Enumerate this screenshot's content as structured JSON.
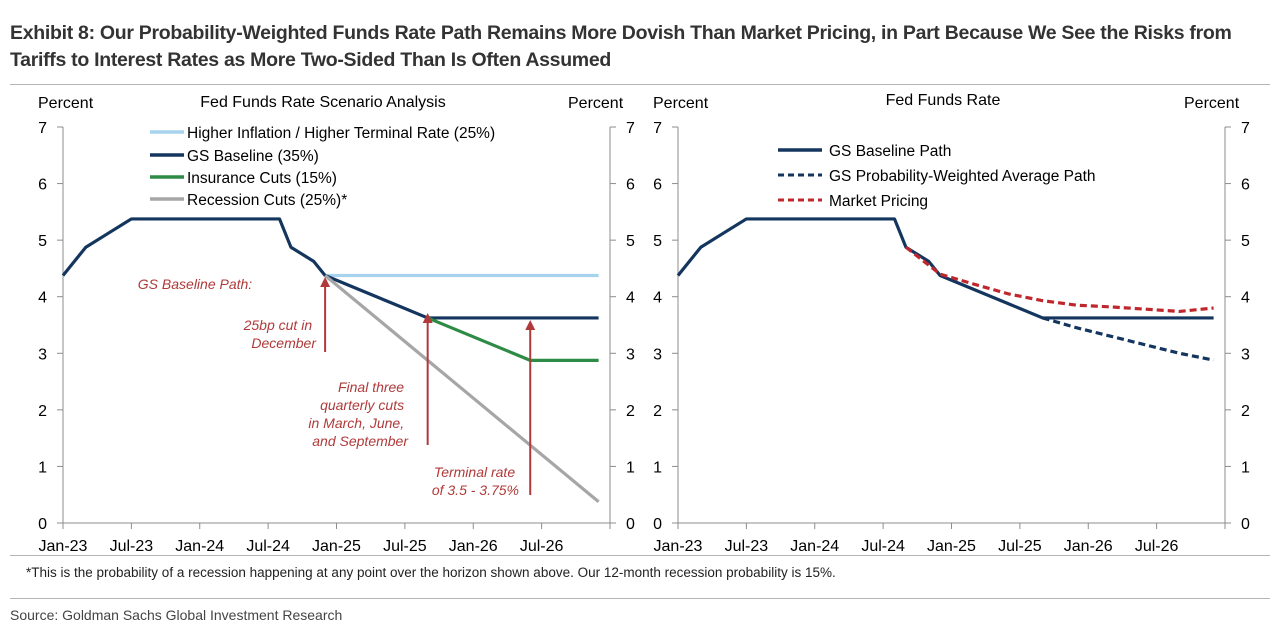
{
  "header": {
    "title": "Exhibit 8: Our Probability-Weighted Funds Rate Path Remains More Dovish Than Market Pricing, in Part Because We See the Risks from Tariffs to Interest Rates as More Two-Sided Than Is Often Assumed"
  },
  "footer": {
    "footnote": "*This is the probability of a recession happening at any point over the horizon shown above.  Our 12-month recession probability is 15%.",
    "source": "Source: Goldman Sachs Global Investment Research"
  },
  "colors": {
    "navy": "#14365e",
    "lightblue": "#a8d3ee",
    "green": "#2e8b46",
    "gray": "#a6a6a6",
    "red": "#c0272d",
    "annotation": "#b03a3a"
  },
  "chart_data": [
    {
      "type": "line",
      "title": "Fed Funds Rate Scenario Analysis",
      "ylabel_left": "Percent",
      "ylabel_right": "Percent",
      "ylim": [
        0,
        7
      ],
      "yticks": [
        "0",
        "1",
        "2",
        "3",
        "4",
        "5",
        "6",
        "7"
      ],
      "x_tick_labels": [
        "Jan-23",
        "Jul-23",
        "Jan-24",
        "Jul-24",
        "Jan-25",
        "Jul-25",
        "Jan-26",
        "Jul-26"
      ],
      "legend_position": "top-left",
      "series": [
        {
          "name": "Higher Inflation / Higher Terminal Rate (25%)",
          "color": "#a8d3ee",
          "points": [
            [
              "2024-12",
              4.375
            ],
            [
              "2026-12",
              4.375
            ]
          ]
        },
        {
          "name": "GS Baseline (35%)",
          "color": "#14365e",
          "points": [
            [
              "2023-01",
              4.375
            ],
            [
              "2023-03",
              4.875
            ],
            [
              "2023-05",
              5.125
            ],
            [
              "2023-07",
              5.375
            ],
            [
              "2024-08",
              5.375
            ],
            [
              "2024-09",
              4.875
            ],
            [
              "2024-11",
              4.625
            ],
            [
              "2024-12",
              4.375
            ],
            [
              "2025-03",
              4.125
            ],
            [
              "2025-06",
              3.875
            ],
            [
              "2025-09",
              3.625
            ],
            [
              "2026-12",
              3.625
            ]
          ]
        },
        {
          "name": "Insurance Cuts (15%)",
          "color": "#2e8b46",
          "points": [
            [
              "2025-09",
              3.625
            ],
            [
              "2026-06",
              2.875
            ],
            [
              "2026-12",
              2.875
            ]
          ]
        },
        {
          "name": "Recession Cuts (25%)*",
          "color": "#a6a6a6",
          "points": [
            [
              "2024-12",
              4.375
            ],
            [
              "2026-12",
              0.375
            ]
          ]
        }
      ],
      "annotations": [
        "GS Baseline Path:",
        "25bp cut in\nDecember",
        "Final three\nquarterly cuts\nin March, June,\nand September",
        "Terminal rate\nof 3.5 - 3.75%"
      ]
    },
    {
      "type": "line",
      "title": "Fed Funds Rate",
      "ylabel_left": "Percent",
      "ylabel_right": "Percent",
      "ylim": [
        0,
        7
      ],
      "yticks": [
        "0",
        "1",
        "2",
        "3",
        "4",
        "5",
        "6",
        "7"
      ],
      "x_tick_labels": [
        "Jan-23",
        "Jul-23",
        "Jan-24",
        "Jul-24",
        "Jan-25",
        "Jul-25",
        "Jan-26",
        "Jul-26"
      ],
      "legend_position": "top-left",
      "series": [
        {
          "name": "GS Baseline Path",
          "color": "#14365e",
          "dash": false,
          "points": [
            [
              "2023-01",
              4.375
            ],
            [
              "2023-03",
              4.875
            ],
            [
              "2023-05",
              5.125
            ],
            [
              "2023-07",
              5.375
            ],
            [
              "2024-08",
              5.375
            ],
            [
              "2024-09",
              4.875
            ],
            [
              "2024-11",
              4.625
            ],
            [
              "2024-12",
              4.375
            ],
            [
              "2025-03",
              4.125
            ],
            [
              "2025-06",
              3.875
            ],
            [
              "2025-09",
              3.625
            ],
            [
              "2026-12",
              3.625
            ]
          ]
        },
        {
          "name": "GS Probability-Weighted Average Path",
          "color": "#14365e",
          "dash": true,
          "points": [
            [
              "2025-09",
              3.625
            ],
            [
              "2025-12",
              3.45
            ],
            [
              "2026-03",
              3.3
            ],
            [
              "2026-06",
              3.15
            ],
            [
              "2026-09",
              3.0
            ],
            [
              "2026-12",
              2.88
            ]
          ]
        },
        {
          "name": "Market Pricing",
          "color": "#c0272d",
          "dash": true,
          "points": [
            [
              "2024-09",
              4.875
            ],
            [
              "2024-12",
              4.4
            ],
            [
              "2025-03",
              4.22
            ],
            [
              "2025-06",
              4.05
            ],
            [
              "2025-09",
              3.93
            ],
            [
              "2025-12",
              3.85
            ],
            [
              "2026-03",
              3.82
            ],
            [
              "2026-06",
              3.78
            ],
            [
              "2026-09",
              3.74
            ],
            [
              "2026-12",
              3.8
            ]
          ]
        }
      ]
    }
  ]
}
